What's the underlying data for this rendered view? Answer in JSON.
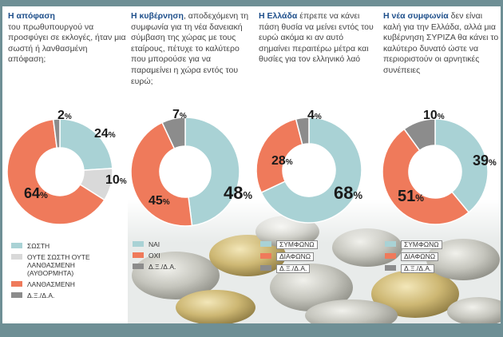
{
  "colors": {
    "teal": "#a9d2d5",
    "light_gray": "#d9d9d9",
    "orange": "#ef7a5b",
    "dark_gray": "#8c8c8c",
    "frame": "#6e8f95"
  },
  "panels": [
    {
      "q_bold": "Η απόφαση",
      "q_text": "του πρωθυπουργού να προσφύγει σε εκλογές, ήταν μια σωστή ή λανθασμένη απόφαση;"
    },
    {
      "q_bold": "Η κυβέρνηση",
      "q_text": ", αποδεχόμενη τη συμφωνία για τη νέα δανειακή σύμβαση της χώρας με τους εταίρους, πέτυχε το καλύτερο που μπορούσε για να παραμείνει η χώρα εντός του ευρώ;"
    },
    {
      "q_bold": "Η Ελλάδα",
      "q_text": " έπρεπε να κάνει πάση θυσία να μείνει εντός του ευρώ ακόμα κι αν αυτό σημαίνει περαιτέρω μέτρα και θυσίες για τον ελληνικό λαό"
    },
    {
      "q_bold": "Η νέα συμφωνία",
      "q_text": " δεν είναι καλή για την Ελλάδα, αλλά μια κυβέρνηση ΣΥΡΙΖΑ θα κάνει το καλύτερο δυνατό ώστε να περιοριστούν οι αρνητικές συνέπειες"
    }
  ],
  "chart_data": [
    {
      "type": "pie",
      "series": [
        {
          "label": "ΣΩΣΤΗ",
          "value": 24,
          "color": "#a9d2d5"
        },
        {
          "label": "ΟΥΤΕ ΣΩΣΤΗ ΟΥΤΕ ΛΑΝΘΑΣΜΕΝΗ (ΑΥΘΟΡΜΗΤΑ)",
          "value": 10,
          "color": "#d9d9d9"
        },
        {
          "label": "ΛΑΝΘΑΣΜΕΝΗ",
          "value": 64,
          "color": "#ef7a5b"
        },
        {
          "label": "Δ.Ξ./Δ.Α.",
          "value": 2,
          "color": "#8c8c8c"
        }
      ],
      "value_labels": [
        "24",
        "10",
        "64",
        "2"
      ]
    },
    {
      "type": "pie",
      "series": [
        {
          "label": "ΝΑΙ",
          "value": 48,
          "color": "#a9d2d5"
        },
        {
          "label": "ΟΧΙ",
          "value": 45,
          "color": "#ef7a5b"
        },
        {
          "label": "Δ.Ξ./Δ.Α.",
          "value": 7,
          "color": "#8c8c8c"
        }
      ],
      "value_labels": [
        "48",
        "45",
        "7"
      ]
    },
    {
      "type": "pie",
      "series": [
        {
          "label": "ΣΥΜΦΩΝΩ",
          "value": 68,
          "color": "#a9d2d5"
        },
        {
          "label": "ΔΙΑΦΩΝΩ",
          "value": 28,
          "color": "#ef7a5b"
        },
        {
          "label": "Δ.Ξ./Δ.Α.",
          "value": 4,
          "color": "#8c8c8c"
        }
      ],
      "value_labels": [
        "68",
        "28",
        "4"
      ]
    },
    {
      "type": "pie",
      "series": [
        {
          "label": "ΣΥΜΦΩΝΩ",
          "value": 39,
          "color": "#a9d2d5"
        },
        {
          "label": "ΔΙΑΦΩΝΩ",
          "value": 51,
          "color": "#ef7a5b"
        },
        {
          "label": "Δ.Ξ./Δ.Α.",
          "value": 10,
          "color": "#8c8c8c"
        }
      ],
      "value_labels": [
        "39",
        "51",
        "10"
      ]
    }
  ],
  "percent_sign": "%"
}
